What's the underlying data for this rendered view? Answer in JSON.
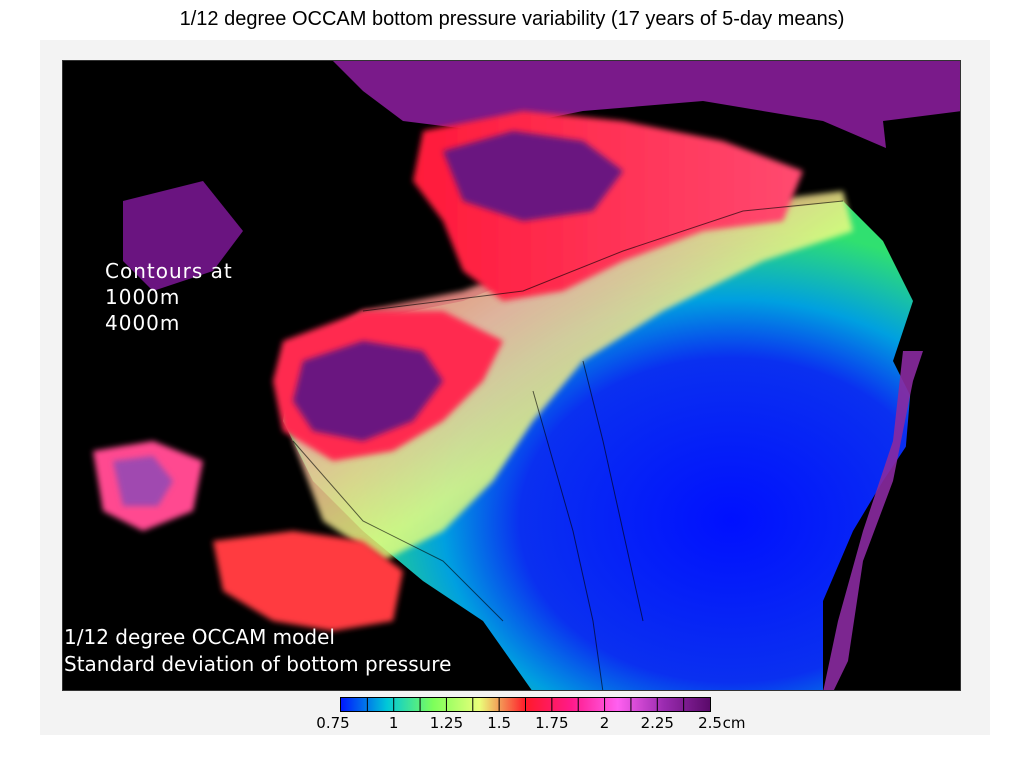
{
  "slide": {
    "title": "1/12 degree OCCAM bottom pressure variability (17 years of 5-day means)"
  },
  "map": {
    "contour_note": {
      "heading": "Contours at",
      "levels": [
        "1000m",
        "4000m"
      ]
    },
    "model_note": {
      "line1": "1/12 degree OCCAM model",
      "line2": "Standard deviation of bottom pressure"
    }
  },
  "colorbar": {
    "range": [
      0.75,
      2.5
    ],
    "unit": "cm",
    "ticks": [
      "0.75",
      "1",
      "1.25",
      "1.5",
      "1.75",
      "2",
      "2.25",
      "2.5"
    ],
    "unit_label": "cm",
    "colors": [
      "#0018ff",
      "#00c8d8",
      "#7dff5a",
      "#eaff7a",
      "#ff1a2a",
      "#ff1a8a",
      "#ff60f0",
      "#9a2bb0",
      "#5a0a6a"
    ]
  },
  "palette": {
    "land": "#000000",
    "frame": "#f3f3f3"
  }
}
